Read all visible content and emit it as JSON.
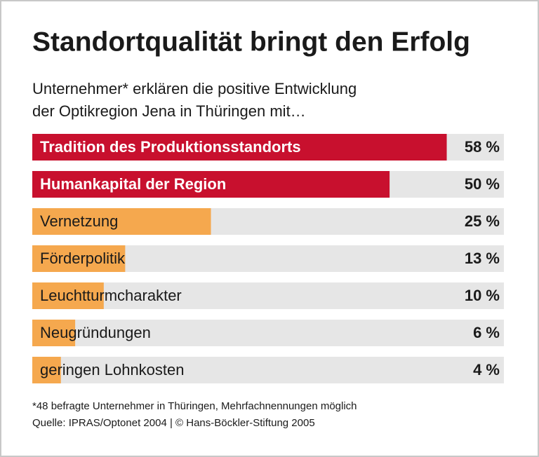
{
  "chart_data": {
    "type": "hbar",
    "title": "Standortqualität bringt den Erfolg",
    "subtitle": [
      "Unternehmer* erklären die positive Entwicklung",
      "der Optikregion Jena in Thüringen mit…"
    ],
    "categories": [
      "Tradition des Produktionsstandorts",
      "Humankapital der Region",
      "Vernetzung",
      "Förderpolitik",
      "Leuchtturmcharakter",
      "Neugründungen",
      "geringen Lohnkosten"
    ],
    "values": [
      58,
      50,
      25,
      13,
      10,
      6,
      4
    ],
    "value_labels": [
      "58 %",
      "50 %",
      "25 %",
      "13 %",
      "10 %",
      "6 %",
      "4 %"
    ],
    "colors": [
      "#c8102e",
      "#c8102e",
      "#f5a84e",
      "#f5a84e",
      "#f5a84e",
      "#f5a84e",
      "#f5a84e"
    ],
    "xlim": [
      0,
      66
    ],
    "notes": [
      "*48 befragte Unternehmer in Thüringen, Mehrfachnennungen möglich",
      "Quelle: IPRAS/Optonet 2004 | © Hans-Böckler-Stiftung 2005"
    ]
  }
}
